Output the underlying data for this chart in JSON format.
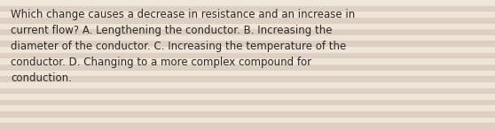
{
  "text": "Which change causes a decrease in resistance and an increase in\ncurrent flow? A. Lengthening the conductor. B. Increasing the\ndiameter of the conductor. C. Increasing the temperature of the\nconductor. D. Changing to a more complex compound for\nconduction.",
  "bg_color": "#ede5d8",
  "stripe_light": "#ede5d8",
  "stripe_dark": "#ddd0c2",
  "text_color": "#2a2a2a",
  "font_size": 8.5,
  "fig_width": 5.58,
  "fig_height": 1.46,
  "dpi": 100,
  "stripe_count": 22
}
